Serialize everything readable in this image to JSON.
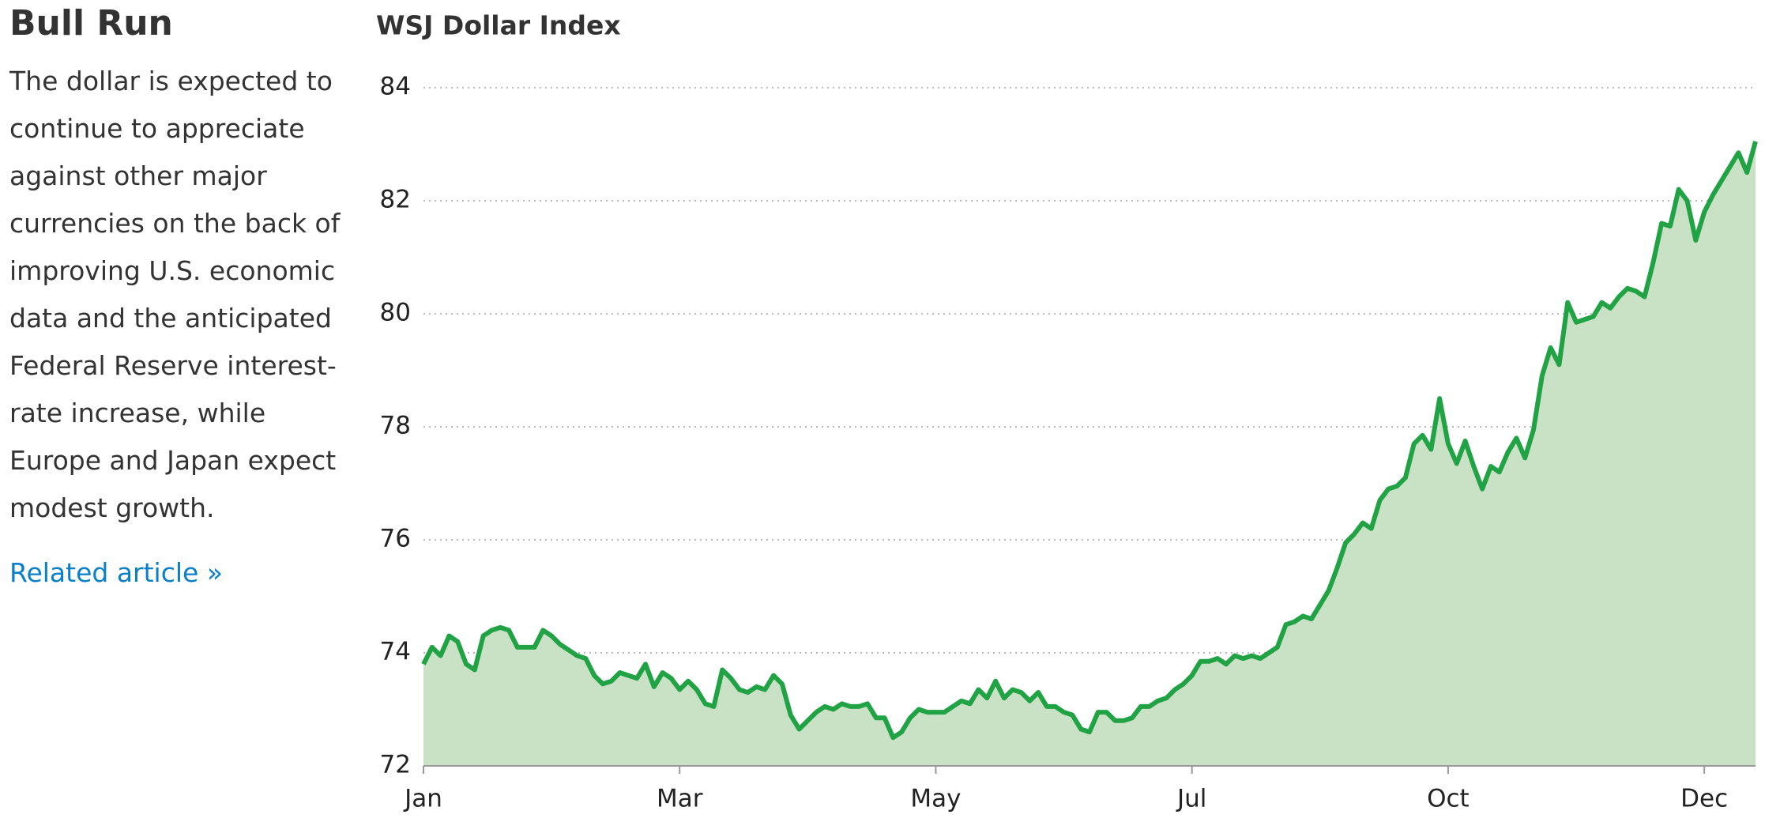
{
  "sidebar": {
    "title": "Bull Run",
    "text": "The dollar is expected to continue to appreciate against other major currencies on the back of improving U.S. economic data and the anticipated Federal Reserve interest-rate increase, while Europe and Japan expect modest growth.",
    "link": "Related article »"
  },
  "chart_data": {
    "type": "area",
    "title": "WSJ Dollar Index",
    "categories": [
      "Jan",
      null,
      null,
      null,
      null,
      null,
      null,
      null,
      null,
      null,
      null,
      null,
      null,
      null,
      null,
      null,
      null,
      null,
      null,
      null,
      null,
      null,
      null,
      null,
      null,
      null,
      null,
      null,
      null,
      null,
      "Mar",
      null,
      null,
      null,
      null,
      null,
      null,
      null,
      null,
      null,
      null,
      null,
      null,
      null,
      null,
      null,
      null,
      null,
      null,
      null,
      null,
      null,
      null,
      null,
      null,
      null,
      null,
      null,
      null,
      null,
      "May",
      null,
      null,
      null,
      null,
      null,
      null,
      null,
      null,
      null,
      null,
      null,
      null,
      null,
      null,
      null,
      null,
      null,
      null,
      null,
      null,
      null,
      null,
      null,
      null,
      null,
      null,
      null,
      null,
      null,
      "Jul",
      null,
      null,
      null,
      null,
      null,
      null,
      null,
      null,
      null,
      null,
      null,
      null,
      null,
      null,
      null,
      null,
      null,
      null,
      null,
      null,
      null,
      null,
      null,
      null,
      null,
      null,
      null,
      null,
      null,
      "Oct",
      null,
      null,
      null,
      null,
      null,
      null,
      null,
      null,
      null,
      null,
      null,
      null,
      null,
      null,
      null,
      null,
      null,
      null,
      null,
      null,
      null,
      null,
      null,
      null,
      null,
      null,
      null,
      null,
      null,
      "Dec",
      null,
      null,
      null,
      null,
      null,
      null
    ],
    "values": [
      73.8,
      74.1,
      73.95,
      74.3,
      74.2,
      73.8,
      73.7,
      74.3,
      74.4,
      74.45,
      74.4,
      74.1,
      74.1,
      74.1,
      74.4,
      74.3,
      74.15,
      74.05,
      73.95,
      73.9,
      73.6,
      73.45,
      73.5,
      73.65,
      73.6,
      73.55,
      73.8,
      73.4,
      73.65,
      73.55,
      73.35,
      73.5,
      73.35,
      73.1,
      73.05,
      73.7,
      73.55,
      73.35,
      73.3,
      73.4,
      73.35,
      73.6,
      73.45,
      72.9,
      72.65,
      72.8,
      72.95,
      73.05,
      73.0,
      73.1,
      73.05,
      73.05,
      73.1,
      72.85,
      72.85,
      72.5,
      72.6,
      72.85,
      73.0,
      72.95,
      72.95,
      72.95,
      73.05,
      73.15,
      73.1,
      73.35,
      73.2,
      73.5,
      73.2,
      73.35,
      73.3,
      73.15,
      73.3,
      73.05,
      73.05,
      72.95,
      72.9,
      72.65,
      72.6,
      72.95,
      72.95,
      72.8,
      72.8,
      72.85,
      73.05,
      73.05,
      73.15,
      73.2,
      73.35,
      73.45,
      73.6,
      73.85,
      73.85,
      73.9,
      73.8,
      73.95,
      73.9,
      73.95,
      73.9,
      74.0,
      74.1,
      74.5,
      74.55,
      74.65,
      74.6,
      74.85,
      75.1,
      75.5,
      75.95,
      76.1,
      76.3,
      76.2,
      76.7,
      76.9,
      76.95,
      77.1,
      77.7,
      77.85,
      77.6,
      78.5,
      77.7,
      77.35,
      77.75,
      77.3,
      76.9,
      77.3,
      77.2,
      77.55,
      77.8,
      77.45,
      77.95,
      78.9,
      79.4,
      79.1,
      80.2,
      79.85,
      79.9,
      79.95,
      80.2,
      80.1,
      80.3,
      80.45,
      80.4,
      80.3,
      80.9,
      81.6,
      81.55,
      82.2,
      82.0,
      81.3,
      81.8,
      82.1,
      82.35,
      82.6,
      82.85,
      82.5,
      83.05
    ],
    "color": "#21a345",
    "fill_color": "#c9e2c6",
    "ylim": [
      72,
      84
    ],
    "yticks": [
      72,
      74,
      76,
      78,
      80,
      82,
      84
    ],
    "grid": true
  }
}
